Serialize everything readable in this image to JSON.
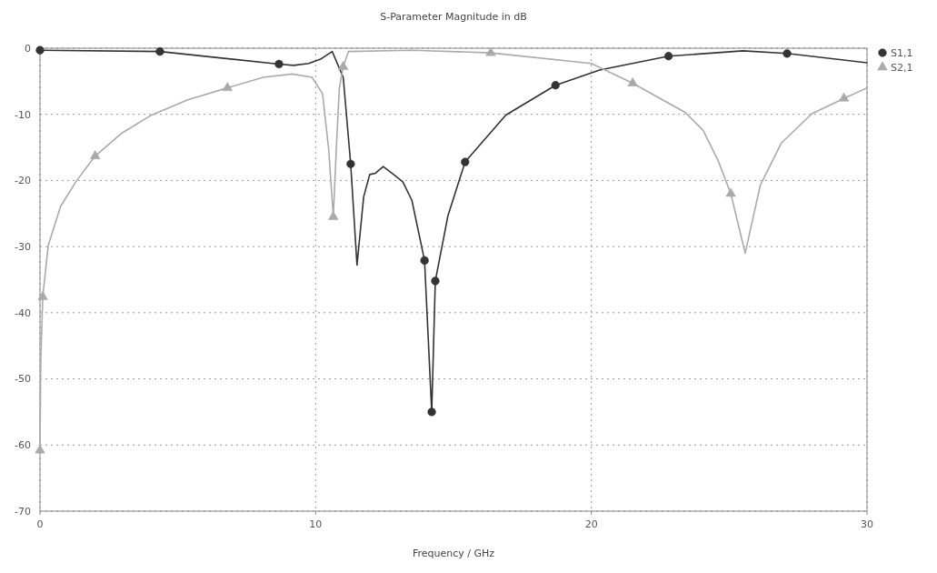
{
  "chart_data": {
    "type": "line",
    "title": "S-Parameter Magnitude in dB",
    "xlabel": "Frequency / GHz",
    "xlim": [
      0,
      30
    ],
    "xticks": [
      0,
      10,
      20,
      30
    ],
    "ylim": [
      -70,
      0
    ],
    "yticks": [
      0,
      -10,
      -20,
      -30,
      -40,
      -50,
      -60,
      -70
    ],
    "grid": true,
    "legend": "top right",
    "line_style": "solid",
    "series": [
      {
        "name": "S1,1",
        "color": "#333333",
        "x": [
          0,
          4.35,
          8.67,
          9.2,
          9.75,
          10.2,
          10.6,
          11.0,
          11.27,
          11.5,
          11.74,
          11.96,
          12.17,
          12.45,
          12.83,
          13.16,
          13.49,
          13.95,
          14.21,
          14.34,
          14.8,
          15.42,
          16.9,
          18.7,
          20.3,
          22.8,
          25.5,
          27.1,
          30
        ],
        "values": [
          -0.3,
          -0.5,
          -2.4,
          -2.6,
          -2.3,
          -1.6,
          -0.5,
          -4.4,
          -17.5,
          -32.8,
          -22.5,
          -19.1,
          -18.9,
          -17.9,
          -19.1,
          -20.2,
          -23,
          -32.1,
          -55,
          -35.2,
          -25.3,
          -17.2,
          -10.1,
          -5.6,
          -3.3,
          -1.2,
          -0.4,
          -0.8,
          -2.2
        ]
      },
      {
        "name": "S2,1",
        "color": "#aaaaaa",
        "x": [
          0,
          0.03,
          0.1,
          0.3,
          0.75,
          1.3,
          2.0,
          2.95,
          4.05,
          5.36,
          6.8,
          8.1,
          9.15,
          9.87,
          10.25,
          10.47,
          10.64,
          10.75,
          10.86,
          11.0,
          11.19,
          13.5,
          16.35,
          20,
          21.5,
          23.4,
          24.05,
          24.6,
          25.06,
          25.58,
          26.13,
          26.9,
          28.0,
          29.16,
          30
        ],
        "values": [
          -60.8,
          -47,
          -37.6,
          -29.8,
          -23.9,
          -20.2,
          -16.3,
          -12.9,
          -10.1,
          -7.8,
          -6.0,
          -4.4,
          -3.9,
          -4.4,
          -6.9,
          -15.2,
          -25.5,
          -15.1,
          -6,
          -2.8,
          -0.5,
          -0.3,
          -0.7,
          -2.3,
          -5.3,
          -9.7,
          -12.4,
          -17,
          -22,
          -31,
          -20.7,
          -14.3,
          -9.9,
          -7.6,
          -6.0
        ]
      },
      {
        "type": "scatter",
        "marker": "circle",
        "color": "#333333",
        "x": [
          0,
          4.35,
          8.67,
          11.27,
          13.95,
          14.21,
          14.34,
          15.42,
          18.7,
          22.8,
          27.1
        ],
        "values": [
          -0.3,
          -0.5,
          -2.4,
          -17.5,
          -32.1,
          -55,
          -35.2,
          -17.2,
          -5.6,
          -1.2,
          -0.8
        ]
      },
      {
        "type": "scatter",
        "marker": "triangle",
        "color": "#aaaaaa",
        "x": [
          0,
          0.1,
          2.0,
          6.8,
          10.64,
          11.0,
          16.35,
          21.5,
          25.06,
          29.16
        ],
        "values": [
          -60.8,
          -37.6,
          -16.3,
          -6.0,
          -25.5,
          -2.8,
          -0.7,
          -5.3,
          -22,
          -7.6
        ]
      }
    ]
  }
}
